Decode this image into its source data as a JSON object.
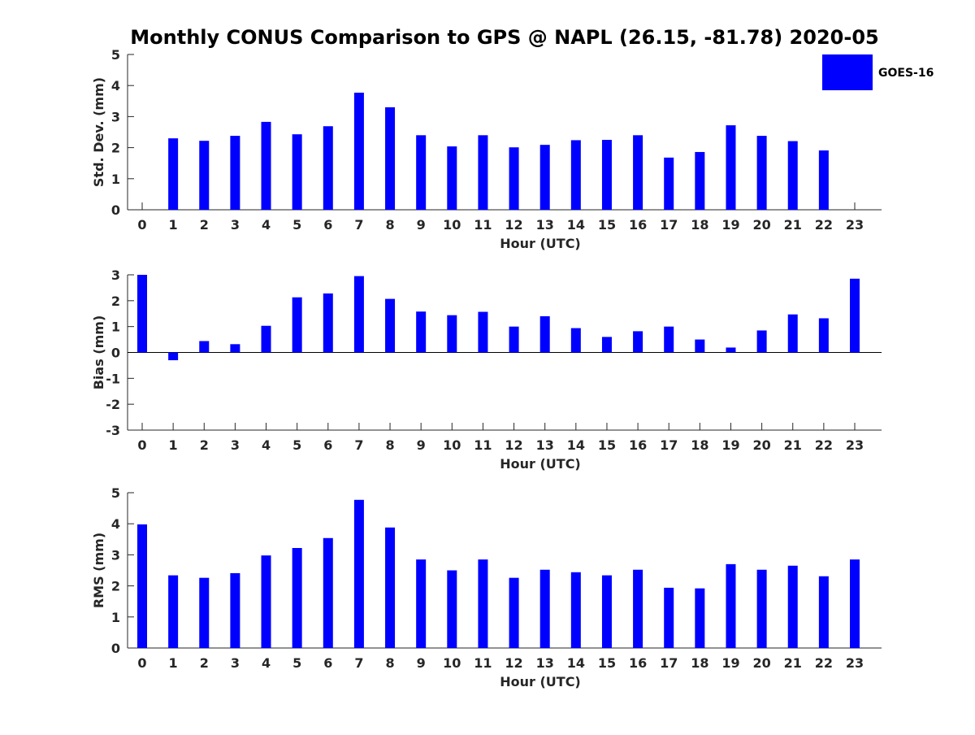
{
  "title": "Monthly CONUS Comparison to GPS @ NAPL (26.15, -81.78) 2020-05",
  "legend": {
    "label": "GOES-16",
    "color": "#0000ff",
    "placement": "top-right"
  },
  "bar_color": "#0000ff",
  "chart_data": [
    {
      "type": "bar",
      "name": "std-dev",
      "xlabel": "Hour (UTC)",
      "ylabel": "Std. Dev. (mm)",
      "ylim": [
        0,
        5
      ],
      "yticks": [
        0,
        1,
        2,
        3,
        4,
        5
      ],
      "categories": [
        "0",
        "1",
        "2",
        "3",
        "4",
        "5",
        "6",
        "7",
        "8",
        "9",
        "10",
        "11",
        "12",
        "13",
        "14",
        "15",
        "16",
        "17",
        "18",
        "19",
        "20",
        "21",
        "22",
        "23"
      ],
      "series": [
        {
          "name": "GOES-16",
          "values": [
            null,
            2.3,
            2.22,
            2.38,
            2.83,
            2.43,
            2.69,
            3.77,
            3.3,
            2.4,
            2.04,
            2.4,
            2.01,
            2.09,
            2.24,
            2.25,
            2.4,
            1.68,
            1.86,
            2.72,
            2.38,
            2.21,
            1.91,
            null
          ]
        }
      ]
    },
    {
      "type": "bar",
      "name": "bias",
      "xlabel": "Hour (UTC)",
      "ylabel": "Bias (mm)",
      "ylim": [
        -3,
        3
      ],
      "yticks": [
        -3,
        -2,
        -1,
        0,
        1,
        2,
        3
      ],
      "categories": [
        "0",
        "1",
        "2",
        "3",
        "4",
        "5",
        "6",
        "7",
        "8",
        "9",
        "10",
        "11",
        "12",
        "13",
        "14",
        "15",
        "16",
        "17",
        "18",
        "19",
        "20",
        "21",
        "22",
        "23"
      ],
      "series": [
        {
          "name": "GOES-16",
          "values": [
            3.0,
            -0.3,
            0.44,
            0.32,
            1.03,
            2.13,
            2.28,
            2.95,
            2.07,
            1.58,
            1.44,
            1.57,
            1.0,
            1.4,
            0.94,
            0.6,
            0.82,
            1.0,
            0.5,
            0.19,
            0.85,
            1.47,
            1.32,
            2.85
          ]
        }
      ]
    },
    {
      "type": "bar",
      "name": "rms",
      "xlabel": "Hour (UTC)",
      "ylabel": "RMS (mm)",
      "ylim": [
        0,
        5
      ],
      "yticks": [
        0,
        1,
        2,
        3,
        4,
        5
      ],
      "categories": [
        "0",
        "1",
        "2",
        "3",
        "4",
        "5",
        "6",
        "7",
        "8",
        "9",
        "10",
        "11",
        "12",
        "13",
        "14",
        "15",
        "16",
        "17",
        "18",
        "19",
        "20",
        "21",
        "22",
        "23"
      ],
      "series": [
        {
          "name": "GOES-16",
          "values": [
            3.98,
            2.34,
            2.26,
            2.41,
            2.98,
            3.22,
            3.54,
            4.77,
            3.88,
            2.85,
            2.5,
            2.85,
            2.26,
            2.52,
            2.44,
            2.34,
            2.52,
            1.94,
            1.92,
            2.7,
            2.52,
            2.65,
            2.31,
            2.85
          ]
        }
      ]
    }
  ]
}
